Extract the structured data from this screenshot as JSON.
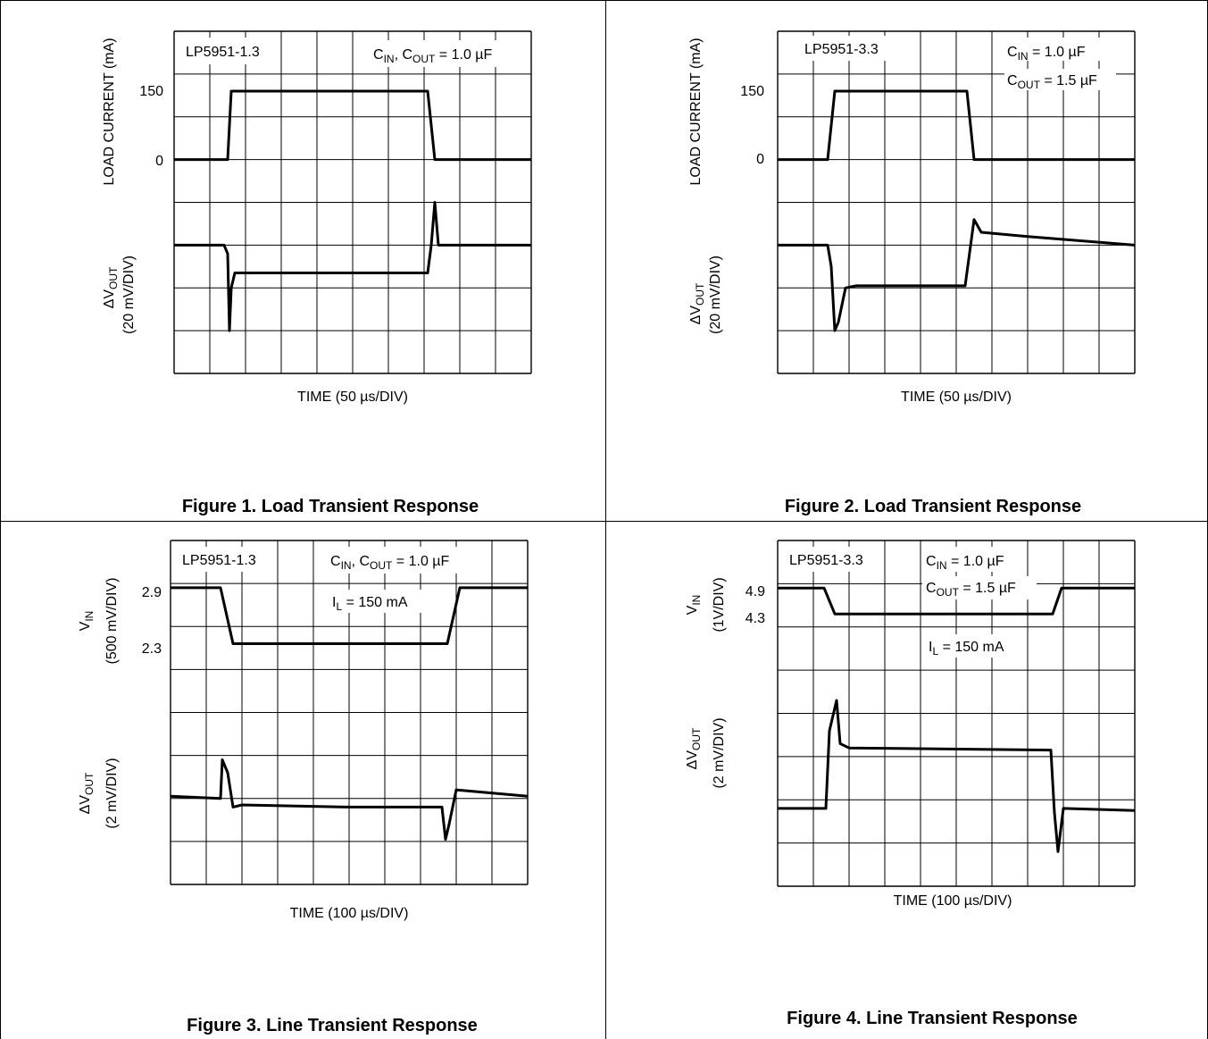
{
  "chart_data": [
    {
      "type": "line",
      "figure_caption": "Figure 1. Load Transient Response",
      "device_label": "LP5951-1.3",
      "condition_label": "C_IN, C_OUT = 1.0 µF",
      "condition_parts": {
        "c1": "C",
        "s1": "IN",
        "mid": ", C",
        "s2": "OUT",
        "rest": " = 1.0 µF"
      },
      "xlabel": "TIME (50 µs/DIV)",
      "x_divisions": 10,
      "y_divisions": 8,
      "upper_axis": {
        "label": "LOAD CURRENT (mA)",
        "ticks": [
          "150",
          "0"
        ]
      },
      "lower_axis": {
        "label_main": "ΔV",
        "label_sub": "OUT",
        "label_scale": "(20 mV/DIV)"
      },
      "series": [
        {
          "points": [
            [
              0,
              5.0
            ],
            [
              1.5,
              5.0
            ],
            [
              1.6,
              6.6
            ],
            [
              7.1,
              6.6
            ],
            [
              7.3,
              5.0
            ],
            [
              10,
              5.0
            ]
          ]
        },
        {
          "points": [
            [
              0,
              3.0
            ],
            [
              1.4,
              3.0
            ],
            [
              1.5,
              2.8
            ],
            [
              1.55,
              1.0
            ],
            [
              1.6,
              2.0
            ],
            [
              1.7,
              2.35
            ],
            [
              7.1,
              2.35
            ],
            [
              7.2,
              3.0
            ],
            [
              7.3,
              4.0
            ],
            [
              7.4,
              3.0
            ],
            [
              10,
              3.0
            ]
          ]
        }
      ]
    },
    {
      "type": "line",
      "figure_caption": "Figure 2. Load Transient Response",
      "device_label": "LP5951-3.3",
      "condition_label": "C_IN = 1.0 µF; C_OUT = 1.5 µF",
      "condition_parts": {
        "c1": "C",
        "s1": "IN",
        "rest1": " = 1.0 µF",
        "c2": "C",
        "s2": "OUT",
        "rest2": " = 1.5 µF"
      },
      "xlabel": "TIME (50 µs/DIV)",
      "x_divisions": 10,
      "y_divisions": 8,
      "upper_axis": {
        "label": "LOAD CURRENT (mA)",
        "ticks": [
          "150",
          "0"
        ]
      },
      "lower_axis": {
        "label_main": "ΔV",
        "label_sub": "OUT",
        "label_scale": "(20 mV/DIV)"
      },
      "series": [
        {
          "points": [
            [
              0,
              5.0
            ],
            [
              1.4,
              5.0
            ],
            [
              1.6,
              6.6
            ],
            [
              5.3,
              6.6
            ],
            [
              5.5,
              5.0
            ],
            [
              10,
              5.0
            ]
          ]
        },
        {
          "points": [
            [
              0,
              3.0
            ],
            [
              1.4,
              3.0
            ],
            [
              1.5,
              2.5
            ],
            [
              1.6,
              1.0
            ],
            [
              1.7,
              1.2
            ],
            [
              1.9,
              2.0
            ],
            [
              2.2,
              2.05
            ],
            [
              5.25,
              2.05
            ],
            [
              5.5,
              3.6
            ],
            [
              5.7,
              3.3
            ],
            [
              7,
              3.2
            ],
            [
              10,
              3.0
            ]
          ]
        }
      ]
    },
    {
      "type": "line",
      "figure_caption": "Figure 3. Line Transient Response",
      "device_label": "LP5951-1.3",
      "condition_label": "C_IN, C_OUT = 1.0 µF; I_L = 150 mA",
      "condition_parts": {
        "c1": "C",
        "s1": "IN",
        "mid": ", C",
        "s2": "OUT",
        "rest": " = 1.0 µF",
        "i": "I",
        "isub": "L",
        "irest": " = 150 mA"
      },
      "xlabel": "TIME (100 µs/DIV)",
      "x_divisions": 10,
      "y_divisions": 8,
      "upper_axis": {
        "label_main": "V",
        "label_sub": "IN",
        "label_scale": "(500 mV/DIV)",
        "ticks": [
          "2.9",
          "2.3"
        ]
      },
      "lower_axis": {
        "label_main": "ΔV",
        "label_sub": "OUT",
        "label_scale": "(2 mV/DIV)"
      },
      "series": [
        {
          "points": [
            [
              0,
              6.9
            ],
            [
              1.4,
              6.9
            ],
            [
              1.75,
              5.6
            ],
            [
              7.75,
              5.6
            ],
            [
              8.1,
              6.9
            ],
            [
              10,
              6.9
            ]
          ]
        },
        {
          "points": [
            [
              0,
              2.05
            ],
            [
              1.4,
              2.0
            ],
            [
              1.45,
              2.9
            ],
            [
              1.6,
              2.6
            ],
            [
              1.75,
              1.8
            ],
            [
              2.0,
              1.85
            ],
            [
              5,
              1.8
            ],
            [
              7.6,
              1.8
            ],
            [
              7.7,
              1.05
            ],
            [
              7.8,
              1.4
            ],
            [
              8.0,
              2.2
            ],
            [
              10,
              2.05
            ]
          ]
        }
      ]
    },
    {
      "type": "line",
      "figure_caption": "Figure 4. Line Transient Response",
      "device_label": "LP5951-3.3",
      "condition_label": "C_IN = 1.0 µF; C_OUT = 1.5 µF; I_L = 150 mA",
      "condition_parts": {
        "c1": "C",
        "s1": "IN",
        "rest1": " = 1.0 µF",
        "c2": "C",
        "s2": "OUT",
        "rest2": " = 1.5 µF",
        "i": "I",
        "isub": "L",
        "irest": " = 150 mA"
      },
      "xlabel": "TIME (100 µs/DIV)",
      "x_divisions": 10,
      "y_divisions": 8,
      "upper_axis": {
        "label_main": "V",
        "label_sub": "IN",
        "label_scale": "(1V/DIV)",
        "ticks": [
          "4.9",
          "4.3"
        ]
      },
      "lower_axis": {
        "label_main": "ΔV",
        "label_sub": "OUT",
        "label_scale": "(2 mV/DIV)"
      },
      "series": [
        {
          "points": [
            [
              0,
              6.9
            ],
            [
              1.3,
              6.9
            ],
            [
              1.6,
              6.3
            ],
            [
              7.7,
              6.3
            ],
            [
              7.95,
              6.9
            ],
            [
              10,
              6.9
            ]
          ]
        },
        {
          "points": [
            [
              0,
              1.8
            ],
            [
              1.35,
              1.8
            ],
            [
              1.45,
              3.6
            ],
            [
              1.65,
              4.3
            ],
            [
              1.75,
              3.3
            ],
            [
              2.0,
              3.2
            ],
            [
              7.65,
              3.15
            ],
            [
              7.75,
              1.7
            ],
            [
              7.85,
              0.8
            ],
            [
              8.0,
              1.8
            ],
            [
              10,
              1.75
            ]
          ]
        }
      ]
    }
  ]
}
